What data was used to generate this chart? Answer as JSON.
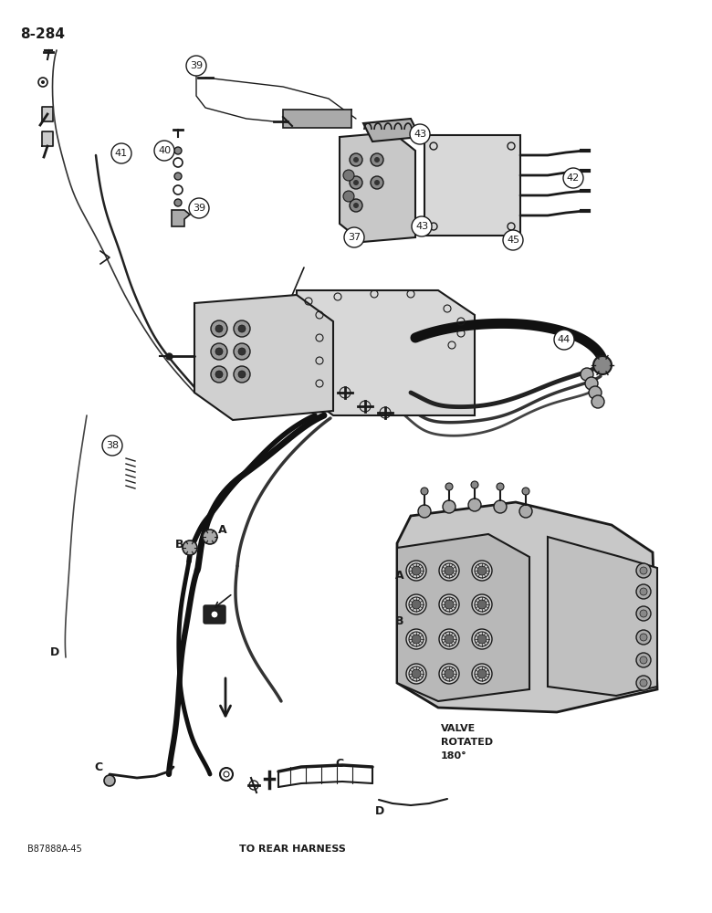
{
  "page_ref": "8-284",
  "figure_ref": "B87888A-45",
  "bottom_label": "TO REAR HARNESS",
  "bg": "#ffffff",
  "lc": "#1a1a1a",
  "gray_fill": "#d0d0d0",
  "light_fill": "#e8e8e8",
  "white_fill": "#ffffff"
}
